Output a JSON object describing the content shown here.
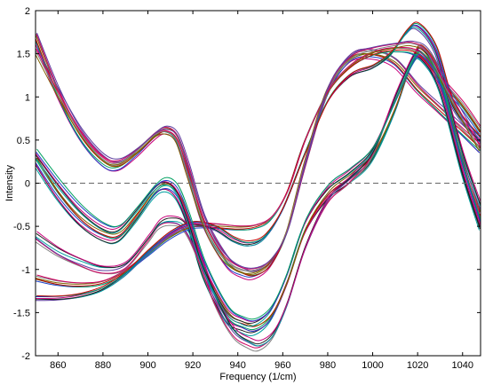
{
  "chart_data": {
    "type": "line",
    "title": "",
    "xlabel": "Frequency (1/cm)",
    "ylabel": "Intensity",
    "xlim": [
      850,
      1048
    ],
    "ylim": [
      -2,
      2
    ],
    "xticks": [
      860,
      880,
      900,
      920,
      940,
      960,
      980,
      1000,
      1020,
      1040
    ],
    "yticks": [
      2,
      1.5,
      1,
      0.5,
      0,
      -0.5,
      -1,
      -1.5,
      -2
    ],
    "grid": false,
    "legend": "none",
    "reference_line": {
      "y": 0,
      "style": "dashed",
      "color": "#666666"
    },
    "series_colors": [
      "#c8007a",
      "#2040c8",
      "#00a060",
      "#c80000",
      "#806000",
      "#808080",
      "#d00060",
      "#6040a0",
      "#00a0a0",
      "#202020"
    ],
    "groups": [
      {
        "count": 8,
        "spread": 0.05,
        "points": [
          [
            850,
            1.7
          ],
          [
            860,
            1.05
          ],
          [
            870,
            0.55
          ],
          [
            880,
            0.25
          ],
          [
            887,
            0.2
          ],
          [
            895,
            0.35
          ],
          [
            903,
            0.55
          ],
          [
            908,
            0.62
          ],
          [
            913,
            0.52
          ],
          [
            918,
            0.15
          ],
          [
            925,
            -0.45
          ],
          [
            935,
            -0.9
          ],
          [
            942,
            -1.03
          ],
          [
            948,
            -1.05
          ],
          [
            955,
            -0.92
          ],
          [
            962,
            -0.55
          ],
          [
            970,
            0.2
          ],
          [
            980,
            1.05
          ],
          [
            990,
            1.45
          ],
          [
            1000,
            1.5
          ],
          [
            1010,
            1.4
          ],
          [
            1020,
            1.1
          ],
          [
            1030,
            0.85
          ],
          [
            1040,
            0.6
          ],
          [
            1048,
            0.4
          ]
        ]
      },
      {
        "count": 7,
        "spread": 0.05,
        "points": [
          [
            850,
            0.25
          ],
          [
            860,
            -0.15
          ],
          [
            870,
            -0.45
          ],
          [
            880,
            -0.62
          ],
          [
            887,
            -0.63
          ],
          [
            895,
            -0.4
          ],
          [
            903,
            -0.12
          ],
          [
            908,
            -0.05
          ],
          [
            913,
            -0.15
          ],
          [
            918,
            -0.45
          ],
          [
            925,
            -1.05
          ],
          [
            935,
            -1.55
          ],
          [
            942,
            -1.67
          ],
          [
            948,
            -1.7
          ],
          [
            955,
            -1.55
          ],
          [
            962,
            -1.15
          ],
          [
            970,
            -0.55
          ],
          [
            980,
            -0.15
          ],
          [
            990,
            0.05
          ],
          [
            1000,
            0.3
          ],
          [
            1010,
            0.85
          ],
          [
            1018,
            1.45
          ],
          [
            1022,
            1.55
          ],
          [
            1030,
            1.2
          ],
          [
            1040,
            0.2
          ],
          [
            1048,
            -0.45
          ]
        ]
      },
      {
        "count": 6,
        "spread": 0.05,
        "points": [
          [
            850,
            -0.62
          ],
          [
            860,
            -0.8
          ],
          [
            870,
            -0.92
          ],
          [
            880,
            -1.0
          ],
          [
            890,
            -0.95
          ],
          [
            900,
            -0.65
          ],
          [
            905,
            -0.48
          ],
          [
            910,
            -0.44
          ],
          [
            916,
            -0.5
          ],
          [
            922,
            -0.8
          ],
          [
            930,
            -1.35
          ],
          [
            938,
            -1.72
          ],
          [
            945,
            -1.85
          ],
          [
            950,
            -1.88
          ],
          [
            956,
            -1.75
          ],
          [
            962,
            -1.4
          ],
          [
            970,
            -0.75
          ],
          [
            980,
            -0.2
          ],
          [
            990,
            0.05
          ],
          [
            1000,
            0.35
          ],
          [
            1010,
            1.0
          ],
          [
            1018,
            1.45
          ],
          [
            1022,
            1.5
          ],
          [
            1030,
            1.2
          ],
          [
            1040,
            0.3
          ],
          [
            1048,
            -0.3
          ]
        ]
      },
      {
        "count": 6,
        "spread": 0.03,
        "points": [
          [
            850,
            -1.1
          ],
          [
            860,
            -1.16
          ],
          [
            870,
            -1.18
          ],
          [
            880,
            -1.15
          ],
          [
            890,
            -1.02
          ],
          [
            900,
            -0.82
          ],
          [
            910,
            -0.62
          ],
          [
            920,
            -0.5
          ],
          [
            930,
            -0.5
          ],
          [
            940,
            -0.52
          ],
          [
            948,
            -0.5
          ],
          [
            955,
            -0.4
          ],
          [
            962,
            -0.1
          ],
          [
            970,
            0.5
          ],
          [
            980,
            1.05
          ],
          [
            990,
            1.35
          ],
          [
            1000,
            1.5
          ],
          [
            1010,
            1.55
          ],
          [
            1020,
            1.5
          ],
          [
            1030,
            1.2
          ],
          [
            1040,
            0.9
          ],
          [
            1048,
            0.6
          ]
        ]
      },
      {
        "count": 7,
        "spread": 0.03,
        "points": [
          [
            850,
            -1.33
          ],
          [
            860,
            -1.33
          ],
          [
            870,
            -1.3
          ],
          [
            880,
            -1.22
          ],
          [
            890,
            -1.05
          ],
          [
            900,
            -0.8
          ],
          [
            910,
            -0.58
          ],
          [
            920,
            -0.47
          ],
          [
            930,
            -0.52
          ],
          [
            938,
            -0.65
          ],
          [
            945,
            -0.7
          ],
          [
            952,
            -0.62
          ],
          [
            960,
            -0.3
          ],
          [
            970,
            0.35
          ],
          [
            980,
            0.95
          ],
          [
            990,
            1.25
          ],
          [
            1000,
            1.35
          ],
          [
            1008,
            1.5
          ],
          [
            1015,
            1.75
          ],
          [
            1020,
            1.82
          ],
          [
            1028,
            1.55
          ],
          [
            1036,
            0.9
          ],
          [
            1048,
            0.5
          ]
        ]
      },
      {
        "count": 4,
        "spread": 0.03,
        "points": [
          [
            850,
            1.55
          ],
          [
            860,
            1.05
          ],
          [
            870,
            0.6
          ],
          [
            880,
            0.3
          ],
          [
            887,
            0.25
          ],
          [
            895,
            0.38
          ],
          [
            903,
            0.56
          ],
          [
            908,
            0.6
          ],
          [
            913,
            0.5
          ],
          [
            918,
            0.1
          ],
          [
            925,
            -0.45
          ],
          [
            932,
            -0.8
          ],
          [
            940,
            -0.98
          ],
          [
            948,
            -1.0
          ],
          [
            955,
            -0.88
          ],
          [
            962,
            -0.55
          ],
          [
            970,
            0.25
          ],
          [
            980,
            1.1
          ],
          [
            990,
            1.45
          ],
          [
            1000,
            1.55
          ],
          [
            1010,
            1.6
          ],
          [
            1018,
            1.62
          ],
          [
            1025,
            1.5
          ],
          [
            1035,
            1.0
          ],
          [
            1048,
            0.4
          ]
        ]
      },
      {
        "count": 5,
        "spread": 0.04,
        "points": [
          [
            850,
            0.35
          ],
          [
            860,
            0.0
          ],
          [
            870,
            -0.3
          ],
          [
            880,
            -0.5
          ],
          [
            887,
            -0.52
          ],
          [
            895,
            -0.3
          ],
          [
            903,
            -0.05
          ],
          [
            908,
            0.02
          ],
          [
            913,
            -0.08
          ],
          [
            918,
            -0.4
          ],
          [
            925,
            -0.95
          ],
          [
            935,
            -1.45
          ],
          [
            942,
            -1.58
          ],
          [
            948,
            -1.6
          ],
          [
            955,
            -1.45
          ],
          [
            962,
            -1.05
          ],
          [
            970,
            -0.45
          ],
          [
            980,
            -0.05
          ],
          [
            990,
            0.15
          ],
          [
            1000,
            0.4
          ],
          [
            1010,
            0.95
          ],
          [
            1018,
            1.4
          ],
          [
            1022,
            1.45
          ],
          [
            1030,
            1.1
          ],
          [
            1040,
            0.15
          ],
          [
            1048,
            -0.5
          ]
        ]
      }
    ]
  }
}
